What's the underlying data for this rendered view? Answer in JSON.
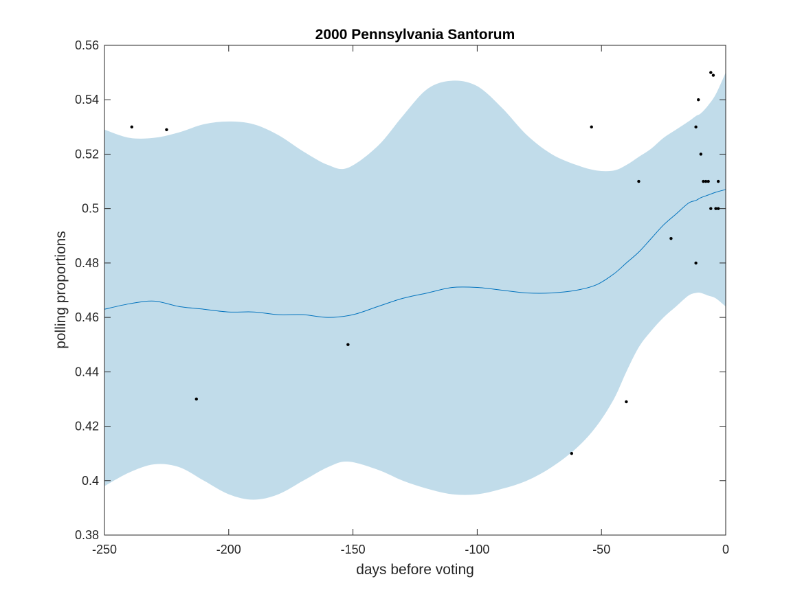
{
  "chart_data": {
    "type": "scatter",
    "title": "2000 Pennsylvania Santorum",
    "xlabel": "days before voting",
    "ylabel": "polling proportions",
    "xlim": [
      -250,
      0
    ],
    "ylim": [
      0.38,
      0.56
    ],
    "x_ticks": [
      -250,
      -200,
      -150,
      -100,
      -50,
      0
    ],
    "x_tick_labels": [
      "-250",
      "-200",
      "-150",
      "-100",
      "-50",
      "0"
    ],
    "y_ticks": [
      0.38,
      0.4,
      0.42,
      0.44,
      0.46,
      0.48,
      0.5,
      0.52,
      0.54,
      0.56
    ],
    "y_tick_labels": [
      "0.38",
      "0.4",
      "0.42",
      "0.44",
      "0.46",
      "0.48",
      "0.5",
      "0.52",
      "0.54",
      "0.56"
    ],
    "grid": false,
    "colors": {
      "band": "#c1dcea",
      "mean_line": "#0072bd",
      "points": "#000000",
      "axes": "#262626"
    },
    "series": [
      {
        "kind": "band",
        "x": [
          -250,
          -240,
          -230,
          -220,
          -210,
          -200,
          -190,
          -180,
          -170,
          -160,
          -152,
          -140,
          -130,
          -120,
          -110,
          -100,
          -90,
          -80,
          -70,
          -60,
          -52,
          -45,
          -40,
          -35,
          -30,
          -25,
          -20,
          -15,
          -12,
          -10,
          -7,
          -4,
          0
        ],
        "lower": [
          0.398,
          0.403,
          0.406,
          0.405,
          0.4,
          0.395,
          0.393,
          0.395,
          0.4,
          0.405,
          0.407,
          0.404,
          0.4,
          0.397,
          0.395,
          0.395,
          0.397,
          0.4,
          0.405,
          0.412,
          0.42,
          0.43,
          0.44,
          0.449,
          0.455,
          0.46,
          0.464,
          0.468,
          0.469,
          0.469,
          0.468,
          0.467,
          0.464
        ],
        "upper": [
          0.529,
          0.526,
          0.526,
          0.528,
          0.531,
          0.532,
          0.531,
          0.527,
          0.521,
          0.516,
          0.515,
          0.523,
          0.534,
          0.544,
          0.547,
          0.545,
          0.537,
          0.527,
          0.52,
          0.516,
          0.514,
          0.514,
          0.516,
          0.519,
          0.522,
          0.526,
          0.529,
          0.532,
          0.534,
          0.535,
          0.538,
          0.542,
          0.55
        ]
      },
      {
        "kind": "line",
        "x": [
          -250,
          -240,
          -230,
          -220,
          -210,
          -200,
          -190,
          -180,
          -170,
          -160,
          -150,
          -140,
          -130,
          -120,
          -110,
          -100,
          -90,
          -80,
          -70,
          -60,
          -52,
          -45,
          -40,
          -35,
          -30,
          -25,
          -20,
          -15,
          -12,
          -10,
          -7,
          -4,
          0
        ],
        "y": [
          0.463,
          0.465,
          0.466,
          0.464,
          0.463,
          0.462,
          0.462,
          0.461,
          0.461,
          0.46,
          0.461,
          0.464,
          0.467,
          0.469,
          0.471,
          0.471,
          0.47,
          0.469,
          0.469,
          0.47,
          0.472,
          0.476,
          0.48,
          0.484,
          0.489,
          0.494,
          0.498,
          0.502,
          0.503,
          0.504,
          0.505,
          0.506,
          0.507
        ]
      },
      {
        "kind": "points",
        "x": [
          -239,
          -225,
          -213,
          -152,
          -62,
          -54,
          -40,
          -35,
          -22,
          -12,
          -12,
          -11,
          -10,
          -9,
          -8,
          -7,
          -6,
          -6,
          -5,
          -4,
          -3,
          -3
        ],
        "y": [
          0.53,
          0.529,
          0.43,
          0.45,
          0.41,
          0.53,
          0.429,
          0.51,
          0.489,
          0.53,
          0.48,
          0.54,
          0.52,
          0.51,
          0.51,
          0.51,
          0.55,
          0.5,
          0.549,
          0.5,
          0.5,
          0.51
        ]
      }
    ]
  }
}
